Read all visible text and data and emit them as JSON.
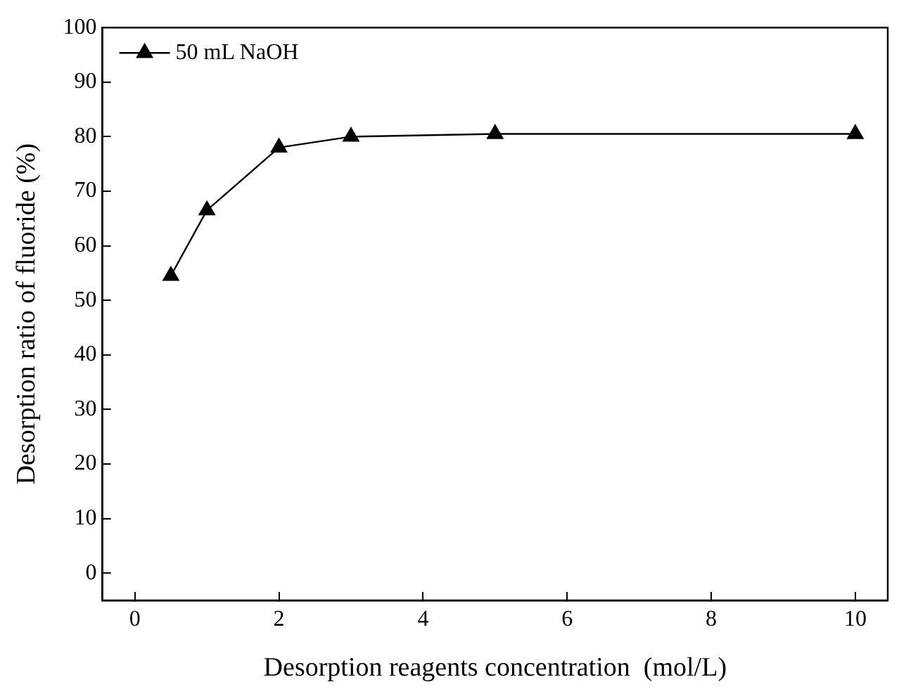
{
  "chart_data": {
    "type": "line",
    "xlabel": "Desorption reagents concentration  (mol/L)",
    "ylabel": "Desorption ratio of fluoride (%)",
    "x": [
      0.5,
      1,
      2,
      3,
      5,
      10
    ],
    "series": [
      {
        "name": "50 mL NaOH",
        "color": "#000000",
        "values": [
          54.5,
          66.5,
          78,
          80,
          80.5,
          80.5
        ]
      }
    ],
    "xlim": [
      -0.45,
      10.45
    ],
    "xticks": [
      0,
      2,
      4,
      6,
      8,
      10
    ],
    "ylim": [
      -5,
      100
    ],
    "yticks": [
      0,
      10,
      20,
      30,
      40,
      50,
      60,
      70,
      80,
      90,
      100
    ],
    "grid": false,
    "legend": "top left",
    "marker": "triangle",
    "line_style": "solid"
  }
}
